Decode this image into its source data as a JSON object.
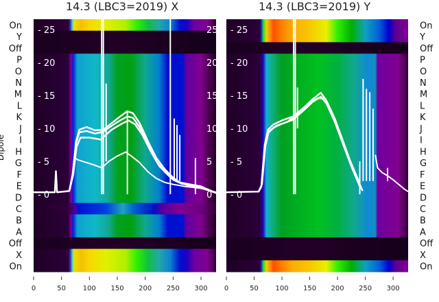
{
  "chart_data": {
    "type": "heatmap",
    "ylabel": "Dipole",
    "row_labels": [
      "On",
      "Y",
      "Off",
      "P",
      "O",
      "N",
      "M",
      "L",
      "K",
      "J",
      "I",
      "H",
      "G",
      "F",
      "E",
      "D",
      "C",
      "B",
      "A",
      "Off",
      "X",
      "On"
    ],
    "x_ticks": [
      0,
      50,
      100,
      150,
      200,
      250,
      300
    ],
    "xlim": [
      0,
      327
    ],
    "inner_y_ticks": [
      0,
      5,
      10,
      15,
      20,
      25
    ],
    "inner_ylim": [
      -11.5,
      26.5
    ],
    "panels": [
      {
        "title": "14.3 (LBC3=2019) X",
        "row_types": [
          "on",
          "off",
          "off",
          "dip",
          "dip",
          "dip",
          "dip",
          "dip",
          "dip",
          "dip",
          "dip",
          "dip",
          "dip",
          "dip",
          "dip",
          "dip",
          "c",
          "dip",
          "dip",
          "off",
          "on",
          "on"
        ],
        "colormaps": {
          "on": [
            [
              0,
              "#200026"
            ],
            [
              62,
              "#2a0038"
            ],
            [
              66,
              "#4030c0"
            ],
            [
              69,
              "#30c8e0"
            ],
            [
              72,
              "#e8e000"
            ],
            [
              85,
              "#f4c000"
            ],
            [
              100,
              "#f8d800"
            ],
            [
              130,
              "#e0f000"
            ],
            [
              165,
              "#b0f000"
            ],
            [
              185,
              "#30f000"
            ],
            [
              205,
              "#10c040"
            ],
            [
              225,
              "#20a8a8"
            ],
            [
              245,
              "#1080d0"
            ],
            [
              262,
              "#0010d0"
            ],
            [
              275,
              "#2000c0"
            ],
            [
              288,
              "#7000a0"
            ],
            [
              312,
              "#800090"
            ],
            [
              327,
              "#300030"
            ]
          ],
          "dip": [
            [
              0,
              "#200026"
            ],
            [
              62,
              "#2a0038"
            ],
            [
              67,
              "#8000a0"
            ],
            [
              71,
              "#0020e0"
            ],
            [
              78,
              "#10a0d0"
            ],
            [
              110,
              "#10b8c8"
            ],
            [
              135,
              "#10a890"
            ],
            [
              150,
              "#00a020"
            ],
            [
              175,
              "#00a010"
            ],
            [
              200,
              "#10a890"
            ],
            [
              225,
              "#0080d0"
            ],
            [
              240,
              "#0010d0"
            ],
            [
              268,
              "#0010d0"
            ],
            [
              273,
              "#6000a0"
            ],
            [
              300,
              "#800090"
            ],
            [
              318,
              "#400040"
            ],
            [
              327,
              "#200026"
            ]
          ],
          "c": [
            [
              0,
              "#200026"
            ],
            [
              60,
              "#300038"
            ],
            [
              75,
              "#5000a0"
            ],
            [
              80,
              "#0010d0"
            ],
            [
              130,
              "#0040e0"
            ],
            [
              160,
              "#20a0c0"
            ],
            [
              180,
              "#0060d0"
            ],
            [
              215,
              "#0010c8"
            ],
            [
              230,
              "#5000a0"
            ],
            [
              260,
              "#800090"
            ],
            [
              300,
              "#700080"
            ],
            [
              327,
              "#300030"
            ]
          ],
          "off": [
            [
              0,
              "#1a0020"
            ],
            [
              150,
              "#220026"
            ],
            [
              327,
              "#14001a"
            ]
          ]
        },
        "series": [
          [
            [
              0,
              0.3
            ],
            [
              38,
              0.3
            ],
            [
              40,
              3.5
            ],
            [
              42,
              0.3
            ],
            [
              64,
              0.5
            ],
            [
              70,
              3
            ],
            [
              76,
              8
            ],
            [
              82,
              9.8
            ],
            [
              95,
              10.2
            ],
            [
              110,
              9.7
            ],
            [
              125,
              9.8
            ],
            [
              140,
              10.8
            ],
            [
              155,
              11.8
            ],
            [
              168,
              12.6
            ],
            [
              178,
              12.3
            ],
            [
              190,
              10.8
            ],
            [
              205,
              8
            ],
            [
              220,
              5.5
            ],
            [
              235,
              3.8
            ],
            [
              250,
              2.5
            ],
            [
              262,
              1.8
            ],
            [
              280,
              1.5
            ],
            [
              300,
              1.2
            ],
            [
              315,
              0.6
            ],
            [
              327,
              0.2
            ]
          ],
          [
            [
              64,
              0.5
            ],
            [
              70,
              3
            ],
            [
              76,
              7.8
            ],
            [
              82,
              9.4
            ],
            [
              95,
              9.6
            ],
            [
              110,
              9.2
            ],
            [
              125,
              9.5
            ],
            [
              140,
              10.4
            ],
            [
              155,
              11.2
            ],
            [
              168,
              11.8
            ],
            [
              178,
              11.6
            ],
            [
              190,
              10.2
            ],
            [
              205,
              7.5
            ],
            [
              220,
              5
            ],
            [
              235,
              3.4
            ],
            [
              250,
              2.2
            ],
            [
              265,
              1.6
            ],
            [
              290,
              1.3
            ],
            [
              310,
              0.8
            ],
            [
              327,
              0.2
            ]
          ],
          [
            [
              64,
              0.5
            ],
            [
              71,
              3
            ],
            [
              77,
              7.2
            ],
            [
              84,
              8.6
            ],
            [
              100,
              8.6
            ],
            [
              120,
              8.3
            ],
            [
              140,
              9.8
            ],
            [
              160,
              10.8
            ],
            [
              170,
              11.2
            ],
            [
              182,
              10.6
            ],
            [
              195,
              9
            ],
            [
              210,
              6.5
            ],
            [
              225,
              4.3
            ],
            [
              240,
              3
            ],
            [
              255,
              2
            ],
            [
              275,
              1.4
            ],
            [
              300,
              1
            ],
            [
              327,
              0.2
            ]
          ],
          [
            [
              64,
              0.5
            ],
            [
              70,
              3
            ],
            [
              74,
              5.5
            ],
            [
              80,
              5.2
            ],
            [
              95,
              4.8
            ],
            [
              110,
              4.4
            ],
            [
              122,
              4.0
            ],
            [
              135,
              5.0
            ],
            [
              150,
              5.8
            ],
            [
              165,
              6.4
            ],
            [
              175,
              5.8
            ],
            [
              190,
              4.8
            ],
            [
              205,
              3.4
            ],
            [
              220,
              2.4
            ],
            [
              235,
              1.8
            ],
            [
              250,
              1.5
            ],
            [
              270,
              1.2
            ],
            [
              300,
              0.9
            ],
            [
              327,
              0.3
            ]
          ]
        ],
        "spikes": [
          [
            122,
            0,
            27
          ],
          [
            125,
            0,
            27
          ],
          [
            130,
            5,
            16.8
          ],
          [
            168,
            0,
            12.5
          ],
          [
            245,
            0,
            27
          ],
          [
            252,
            2,
            11.5
          ],
          [
            257,
            2,
            10.5
          ],
          [
            262,
            2,
            9
          ],
          [
            290,
            0,
            5.5
          ]
        ]
      },
      {
        "title": "14.3 (LBC3=2019) Y",
        "row_types": [
          "on",
          "on",
          "off",
          "dip",
          "dip",
          "dip",
          "dip",
          "dip",
          "dip",
          "dip",
          "dip",
          "dip",
          "dip",
          "dip",
          "dip",
          "dip",
          "dip",
          "dip",
          "dip",
          "off",
          "off",
          "on"
        ],
        "colormaps": {
          "on": [
            [
              0,
              "#200026"
            ],
            [
              60,
              "#2a0038"
            ],
            [
              63,
              "#3020c0"
            ],
            [
              66,
              "#00e040"
            ],
            [
              72,
              "#f0d000"
            ],
            [
              85,
              "#ff5000"
            ],
            [
              100,
              "#ff8000"
            ],
            [
              120,
              "#f8b000"
            ],
            [
              150,
              "#f8c800"
            ],
            [
              180,
              "#e8f000"
            ],
            [
              200,
              "#30f000"
            ],
            [
              225,
              "#00b000"
            ],
            [
              250,
              "#10a0c0"
            ],
            [
              275,
              "#0060d8"
            ],
            [
              292,
              "#0000d0"
            ],
            [
              305,
              "#600090"
            ],
            [
              327,
              "#800090"
            ]
          ],
          "dip": [
            [
              0,
              "#200026"
            ],
            [
              60,
              "#2a0038"
            ],
            [
              66,
              "#2000c0"
            ],
            [
              72,
              "#10b0d0"
            ],
            [
              80,
              "#10b090"
            ],
            [
              100,
              "#00a020"
            ],
            [
              165,
              "#00c020"
            ],
            [
              200,
              "#00b040"
            ],
            [
              230,
              "#10a890"
            ],
            [
              255,
              "#1088d8"
            ],
            [
              268,
              "#1090c0"
            ],
            [
              272,
              "#7000a0"
            ],
            [
              310,
              "#800090"
            ],
            [
              327,
              "#300030"
            ]
          ],
          "off": [
            [
              0,
              "#1a0020"
            ],
            [
              150,
              "#220026"
            ],
            [
              327,
              "#14001a"
            ]
          ]
        },
        "series": [
          [
            [
              0,
              0.3
            ],
            [
              58,
              0.4
            ],
            [
              63,
              1.2
            ],
            [
              69,
              7.5
            ],
            [
              75,
              9.8
            ],
            [
              85,
              10.6
            ],
            [
              100,
              11.2
            ],
            [
              120,
              11.8
            ],
            [
              140,
              13.2
            ],
            [
              155,
              14.4
            ],
            [
              170,
              15.4
            ],
            [
              180,
              14.2
            ],
            [
              195,
              11.5
            ],
            [
              210,
              8
            ],
            [
              225,
              4.5
            ],
            [
              240,
              1.5
            ],
            [
              245,
              0.5
            ]
          ],
          [
            [
              58,
              0.4
            ],
            [
              63,
              1.2
            ],
            [
              69,
              7
            ],
            [
              75,
              9.3
            ],
            [
              85,
              10.1
            ],
            [
              100,
              10.7
            ],
            [
              120,
              11.3
            ],
            [
              140,
              12.8
            ],
            [
              155,
              14
            ],
            [
              170,
              14.8
            ],
            [
              180,
              13.8
            ],
            [
              195,
              11
            ],
            [
              210,
              7.6
            ],
            [
              225,
              4.2
            ],
            [
              240,
              1.2
            ]
          ],
          [
            [
              58,
              0.4
            ],
            [
              64,
              1.5
            ],
            [
              70,
              7.2
            ],
            [
              76,
              9.5
            ],
            [
              90,
              10.4
            ],
            [
              110,
              11
            ],
            [
              130,
              12.3
            ],
            [
              150,
              13.8
            ],
            [
              165,
              14.6
            ],
            [
              178,
              14.5
            ],
            [
              192,
              12
            ],
            [
              208,
              8.5
            ],
            [
              222,
              5.2
            ],
            [
              238,
              2
            ]
          ],
          [
            [
              268,
              6
            ],
            [
              272,
              4
            ],
            [
              280,
              3.3
            ],
            [
              290,
              2.8
            ],
            [
              300,
              2.2
            ],
            [
              310,
              1.5
            ],
            [
              320,
              0.8
            ],
            [
              327,
              0.4
            ]
          ]
        ],
        "spikes": [
          [
            121,
            0,
            27
          ],
          [
            124,
            0,
            27
          ],
          [
            128,
            10,
            16.2
          ],
          [
            246,
            2,
            17.5
          ],
          [
            252,
            2,
            16
          ],
          [
            258,
            2,
            15.5
          ],
          [
            264,
            2,
            13
          ],
          [
            240,
            0,
            5
          ],
          [
            290,
            2,
            4
          ]
        ]
      }
    ]
  }
}
